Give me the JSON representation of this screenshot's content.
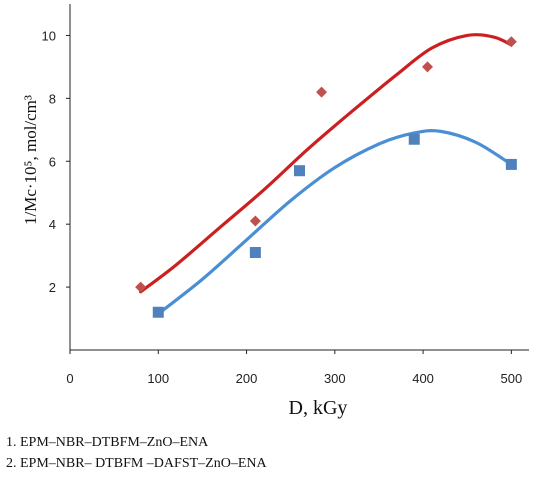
{
  "chart_data": {
    "type": "scatter",
    "xlabel": "D, kGy",
    "ylabel": "1/Mc·10⁵, mol/cm³",
    "xlim": [
      0,
      520
    ],
    "ylim": [
      0,
      11
    ],
    "x_ticks": [
      "0",
      "100",
      "200",
      "300",
      "400",
      "500"
    ],
    "y_ticks": [
      "2",
      "4",
      "6",
      "8",
      "10"
    ],
    "grid": false,
    "legend": [
      "1. EPM–NBR–DTBFM–ZnO–ENA",
      "2. EPM–NBR– DTBFM –DAFST–ZnO–ENA"
    ],
    "series": [
      {
        "marker": "diamond",
        "marker_color": "#c0504d",
        "line_color": "#cc1f1f",
        "points": [
          [
            80,
            2.0
          ],
          [
            210,
            4.1
          ],
          [
            285,
            8.2
          ],
          [
            405,
            9.0
          ],
          [
            500,
            9.8
          ]
        ],
        "fit": [
          [
            80,
            1.85
          ],
          [
            120,
            2.7
          ],
          [
            170,
            3.9
          ],
          [
            220,
            5.1
          ],
          [
            270,
            6.4
          ],
          [
            320,
            7.6
          ],
          [
            370,
            8.75
          ],
          [
            410,
            9.6
          ],
          [
            450,
            10.0
          ],
          [
            480,
            9.95
          ],
          [
            500,
            9.7
          ]
        ]
      },
      {
        "marker": "square",
        "marker_color": "#4f81bd",
        "line_color": "#4a8fd4",
        "points": [
          [
            100,
            1.2
          ],
          [
            210,
            3.1
          ],
          [
            260,
            5.7
          ],
          [
            390,
            6.7
          ],
          [
            500,
            5.9
          ]
        ],
        "fit": [
          [
            100,
            1.15
          ],
          [
            150,
            2.25
          ],
          [
            200,
            3.5
          ],
          [
            250,
            4.75
          ],
          [
            300,
            5.8
          ],
          [
            350,
            6.55
          ],
          [
            390,
            6.9
          ],
          [
            420,
            6.95
          ],
          [
            460,
            6.6
          ],
          [
            500,
            5.9
          ]
        ]
      }
    ]
  }
}
